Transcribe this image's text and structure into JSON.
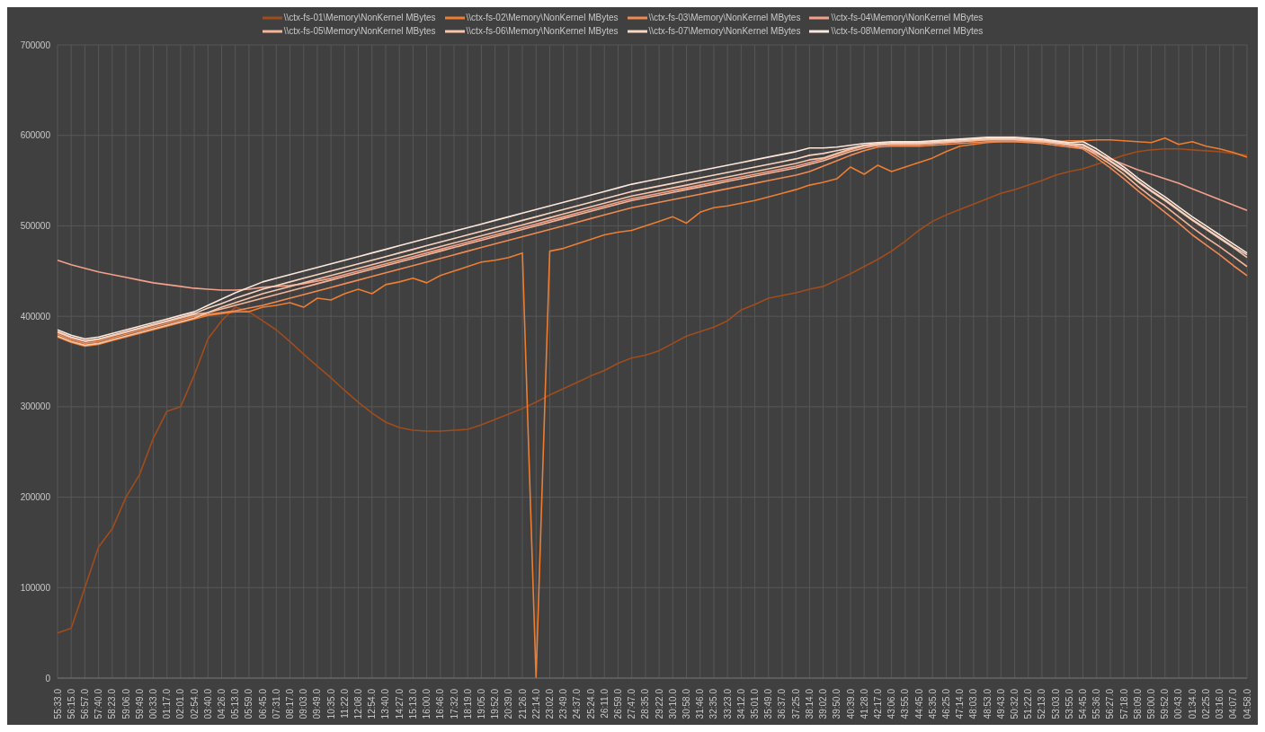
{
  "chart_data": {
    "type": "line",
    "legend": "top",
    "grid": true,
    "ylim": [
      0,
      700000
    ],
    "yticks": [
      0,
      100000,
      200000,
      300000,
      400000,
      500000,
      600000,
      700000
    ],
    "categories": [
      "55:33.0",
      "56:15.0",
      "56:57.0",
      "57:40.0",
      "58:23.0",
      "59:06.0",
      "59:49.0",
      "00:33.0",
      "01:17.0",
      "02:01.0",
      "02:54.0",
      "03:40.0",
      "04:26.0",
      "05:13.0",
      "05:59.0",
      "06:45.0",
      "07:31.0",
      "08:17.0",
      "09:03.0",
      "09:49.0",
      "10:35.0",
      "11:22.0",
      "12:08.0",
      "12:54.0",
      "13:40.0",
      "14:27.0",
      "15:13.0",
      "16:00.0",
      "16:46.0",
      "17:32.0",
      "18:19.0",
      "19:05.0",
      "19:52.0",
      "20:39.0",
      "21:26.0",
      "22:14.0",
      "23:02.0",
      "23:49.0",
      "24:37.0",
      "25:24.0",
      "26:11.0",
      "26:59.0",
      "27:47.0",
      "28:35.0",
      "29:22.0",
      "30:10.0",
      "30:58.0",
      "31:46.0",
      "32:35.0",
      "33:23.0",
      "34:12.0",
      "35:01.0",
      "35:49.0",
      "36:37.0",
      "37:25.0",
      "38:14.0",
      "39:02.0",
      "39:50.0",
      "40:39.0",
      "41:28.0",
      "42:17.0",
      "43:06.0",
      "43:55.0",
      "44:45.0",
      "45:35.0",
      "46:25.0",
      "47:14.0",
      "48:03.0",
      "48:53.0",
      "49:43.0",
      "50:32.0",
      "51:22.0",
      "52:13.0",
      "53:03.0",
      "53:55.0",
      "54:45.0",
      "55:36.0",
      "56:27.0",
      "57:18.0",
      "58:09.0",
      "59:00.0",
      "59:52.0",
      "00:43.0",
      "01:34.0",
      "02:25.0",
      "03:16.0",
      "04:07.0",
      "04:58.0"
    ],
    "series": [
      {
        "name": "\\\\ctx-fs-01\\Memory\\NonKernel MBytes",
        "color": "#a04c1c",
        "values": [
          50000,
          55000,
          100000,
          145000,
          165000,
          200000,
          225000,
          265000,
          295000,
          300000,
          335000,
          375000,
          395000,
          410000,
          405000,
          395000,
          385000,
          372000,
          358000,
          345000,
          332000,
          318000,
          305000,
          293000,
          283000,
          277000,
          274000,
          273000,
          273000,
          274000,
          275000,
          280000,
          286000,
          292000,
          298000,
          305000,
          313000,
          320000,
          327000,
          334000,
          340000,
          348000,
          354000,
          357000,
          362000,
          370000,
          378000,
          383000,
          388000,
          395000,
          407000,
          413000,
          420000,
          423000,
          426000,
          430000,
          433000,
          440000,
          447000,
          455000,
          463000,
          472000,
          483000,
          495000,
          505000,
          512000,
          518000,
          524000,
          530000,
          536000,
          540000,
          545000,
          550000,
          556000,
          560000,
          563000,
          568000,
          573000,
          578000,
          582000,
          584000,
          585000,
          585000,
          584000,
          583000,
          582000,
          580000,
          578000
        ]
      },
      {
        "name": "\\\\ctx-fs-02\\Memory\\NonKernel MBytes",
        "color": "#ed7d31",
        "values": [
          377000,
          371000,
          367000,
          369000,
          373000,
          377000,
          381000,
          385000,
          389000,
          393000,
          397000,
          401000,
          403000,
          405000,
          405000,
          410000,
          412000,
          415000,
          410000,
          420000,
          418000,
          425000,
          430000,
          425000,
          435000,
          438000,
          442000,
          437000,
          445000,
          450000,
          455000,
          460000,
          462000,
          465000,
          470000,
          0,
          472000,
          475000,
          480000,
          485000,
          490000,
          493000,
          495000,
          500000,
          505000,
          510000,
          503000,
          515000,
          520000,
          522000,
          525000,
          528000,
          532000,
          536000,
          540000,
          545000,
          548000,
          552000,
          565000,
          557000,
          567000,
          560000,
          565000,
          570000,
          575000,
          582000,
          588000,
          590000,
          592000,
          593000,
          593000,
          593000,
          592000,
          593000,
          594000,
          594000,
          595000,
          595000,
          594000,
          593000,
          592000,
          597000,
          590000,
          593000,
          588000,
          585000,
          581000,
          576000
        ]
      },
      {
        "name": "\\\\ctx-fs-03\\Memory\\NonKernel MBytes",
        "color": "#f08a52",
        "values": [
          380000,
          374000,
          370000,
          372000,
          376000,
          380000,
          384000,
          388000,
          392000,
          396000,
          400000,
          402000,
          404000,
          406000,
          409000,
          412000,
          416000,
          420000,
          424000,
          428000,
          432000,
          436000,
          440000,
          444000,
          448000,
          452000,
          456000,
          460000,
          464000,
          468000,
          472000,
          476000,
          480000,
          484000,
          488000,
          492000,
          496000,
          500000,
          504000,
          508000,
          512000,
          516000,
          520000,
          523000,
          526000,
          529000,
          532000,
          535000,
          538000,
          541000,
          544000,
          547000,
          550000,
          553000,
          556000,
          560000,
          566000,
          572000,
          578000,
          583000,
          587000,
          588000,
          588000,
          588000,
          589000,
          590000,
          591000,
          592000,
          593000,
          593000,
          593000,
          592000,
          591000,
          589000,
          587000,
          585000,
          575000,
          564000,
          552000,
          539000,
          527000,
          515000,
          503000,
          490000,
          479000,
          468000,
          456000,
          445000
        ]
      },
      {
        "name": "\\\\ctx-fs-04\\Memory\\NonKernel MBytes",
        "color": "#f4a08a",
        "values": [
          462000,
          457000,
          453000,
          449000,
          446000,
          443000,
          440000,
          437000,
          435000,
          433000,
          431000,
          430000,
          429000,
          429000,
          430000,
          432000,
          433000,
          434000,
          436000,
          439000,
          442000,
          446000,
          450000,
          454000,
          458000,
          462000,
          466000,
          470000,
          474000,
          478000,
          482000,
          486000,
          490000,
          494000,
          498000,
          502000,
          506000,
          510000,
          514000,
          518000,
          522000,
          526000,
          530000,
          533000,
          536000,
          539000,
          542000,
          545000,
          548000,
          551000,
          554000,
          557000,
          560000,
          563000,
          566000,
          570000,
          574000,
          579000,
          584000,
          588000,
          589000,
          590000,
          590000,
          590000,
          591000,
          592000,
          593000,
          594000,
          595000,
          595000,
          595000,
          594000,
          593000,
          591000,
          589000,
          586000,
          580000,
          574000,
          568000,
          562000,
          557000,
          552000,
          547000,
          541000,
          535000,
          529000,
          523000,
          517000
        ]
      },
      {
        "name": "\\\\ctx-fs-05\\Memory\\NonKernel MBytes",
        "color": "#f5b596",
        "values": [
          382000,
          376000,
          372000,
          374000,
          378000,
          382000,
          386000,
          390000,
          394000,
          398000,
          402000,
          404000,
          408000,
          412000,
          416000,
          420000,
          424000,
          428000,
          432000,
          436000,
          440000,
          444000,
          448000,
          452000,
          456000,
          460000,
          464000,
          468000,
          472000,
          476000,
          480000,
          484000,
          488000,
          492000,
          496000,
          500000,
          504000,
          508000,
          512000,
          516000,
          520000,
          524000,
          528000,
          531000,
          534000,
          537000,
          540000,
          543000,
          546000,
          549000,
          552000,
          555000,
          558000,
          561000,
          564000,
          568000,
          572000,
          577000,
          582000,
          586000,
          589000,
          590000,
          590000,
          590000,
          591000,
          592000,
          593000,
          594000,
          595000,
          595000,
          595000,
          594000,
          593000,
          591000,
          589000,
          587000,
          578000,
          568000,
          557000,
          544000,
          532000,
          522000,
          510000,
          498000,
          487000,
          477000,
          466000,
          455000
        ]
      },
      {
        "name": "\\\\ctx-fs-06\\Memory\\NonKernel MBytes",
        "color": "#f7c5aa",
        "values": [
          378000,
          372000,
          368000,
          370000,
          374000,
          378000,
          382000,
          386000,
          390000,
          394000,
          398000,
          404000,
          410000,
          415000,
          420000,
          425000,
          429000,
          433000,
          437000,
          441000,
          445000,
          449000,
          453000,
          457000,
          461000,
          465000,
          469000,
          473000,
          477000,
          481000,
          485000,
          489000,
          493000,
          497000,
          501000,
          505000,
          509000,
          513000,
          517000,
          521000,
          525000,
          529000,
          533000,
          536000,
          539000,
          542000,
          545000,
          548000,
          551000,
          554000,
          557000,
          560000,
          563000,
          566000,
          569000,
          573000,
          575000,
          580000,
          585000,
          589000,
          590000,
          591000,
          591000,
          591000,
          592000,
          593000,
          594000,
          595000,
          596000,
          596000,
          596000,
          595000,
          594000,
          592000,
          590000,
          589000,
          581000,
          571000,
          561000,
          549000,
          538000,
          528000,
          517000,
          506000,
          496000,
          486000,
          476000,
          465000
        ]
      },
      {
        "name": "\\\\ctx-fs-07\\Memory\\NonKernel MBytes",
        "color": "#f9d6c2",
        "values": [
          383000,
          377000,
          373000,
          375000,
          379000,
          383000,
          387000,
          391000,
          395000,
          399000,
          403000,
          409000,
          414000,
          420000,
          425000,
          430000,
          434000,
          438000,
          442000,
          446000,
          450000,
          454000,
          458000,
          462000,
          466000,
          470000,
          474000,
          478000,
          482000,
          486000,
          490000,
          494000,
          498000,
          502000,
          506000,
          510000,
          514000,
          518000,
          522000,
          526000,
          530000,
          534000,
          538000,
          541000,
          544000,
          547000,
          550000,
          553000,
          556000,
          559000,
          562000,
          565000,
          568000,
          571000,
          574000,
          578000,
          580000,
          583000,
          586000,
          589000,
          591000,
          592000,
          592000,
          592000,
          593000,
          594000,
          595000,
          596000,
          597000,
          597000,
          597000,
          596000,
          595000,
          593000,
          591000,
          590000,
          582000,
          572000,
          562000,
          550000,
          539000,
          529000,
          518000,
          507000,
          497000,
          487000,
          477000,
          468000
        ]
      },
      {
        "name": "\\\\ctx-fs-08\\Memory\\NonKernel MBytes",
        "color": "#fbe7dc",
        "values": [
          385000,
          379000,
          375000,
          377000,
          381000,
          385000,
          389000,
          393000,
          397000,
          401000,
          405000,
          412000,
          419000,
          426000,
          432000,
          438000,
          442000,
          446000,
          450000,
          454000,
          458000,
          462000,
          466000,
          470000,
          474000,
          478000,
          482000,
          486000,
          490000,
          494000,
          498000,
          502000,
          506000,
          510000,
          514000,
          518000,
          522000,
          526000,
          530000,
          534000,
          538000,
          542000,
          546000,
          549000,
          552000,
          555000,
          558000,
          561000,
          564000,
          567000,
          570000,
          573000,
          576000,
          579000,
          582000,
          586000,
          586000,
          587000,
          589000,
          591000,
          592000,
          593000,
          593000,
          593000,
          594000,
          595000,
          596000,
          597000,
          598000,
          598000,
          598000,
          597000,
          596000,
          594000,
          592000,
          593000,
          585000,
          575000,
          565000,
          553000,
          542000,
          532000,
          521000,
          510000,
          500000,
          490000,
          480000,
          470000
        ]
      }
    ]
  }
}
